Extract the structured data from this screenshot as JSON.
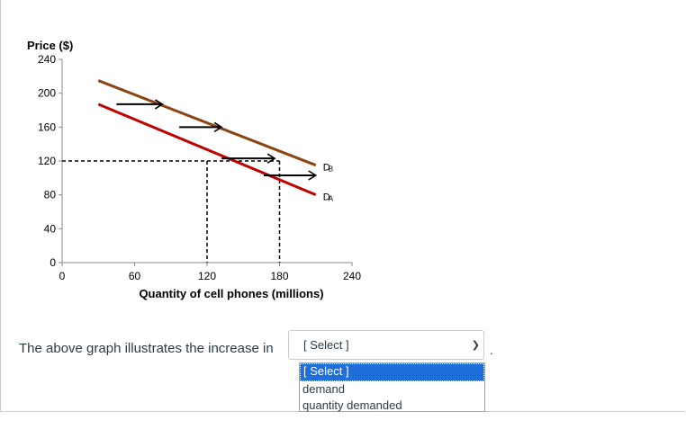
{
  "chart_data": {
    "type": "line",
    "ylabel": "Price ($)",
    "xlabel": "Quantity of cell phones (millions)",
    "y_ticks": [
      "240",
      "200",
      "160",
      "120",
      "80",
      "40",
      "0"
    ],
    "x_ticks": [
      "0",
      "60",
      "120",
      "180",
      "240"
    ],
    "ylim": [
      0,
      240
    ],
    "xlim": [
      0,
      240
    ],
    "series": [
      {
        "name": "D_B",
        "label_main": "D",
        "label_sub": "B",
        "color": "#8b4513",
        "x": [
          30,
          210
        ],
        "y": [
          215,
          115
        ]
      },
      {
        "name": "D_A",
        "label_main": "D",
        "label_sub": "A",
        "color": "#c00000",
        "x": [
          30,
          210
        ],
        "y": [
          187,
          80
        ]
      }
    ],
    "reference_lines": [
      {
        "x": 120,
        "y": 120
      },
      {
        "x": 180,
        "y": 120
      }
    ],
    "shift_arrows": [
      {
        "y": 187,
        "x0": 45,
        "x1": 83
      },
      {
        "y": 160,
        "x0": 97,
        "x1": 132
      },
      {
        "y": 123,
        "x0": 132,
        "x1": 176
      },
      {
        "y": 103,
        "x0": 167,
        "x1": 210
      }
    ],
    "grid": false,
    "legend": "none"
  },
  "question": {
    "text": "The above graph illustrates the increase in",
    "select_value": "[ Select ]",
    "trailing": ".",
    "options": [
      "[ Select ]",
      "demand",
      "quantity demanded"
    ],
    "selected_index": 0
  }
}
